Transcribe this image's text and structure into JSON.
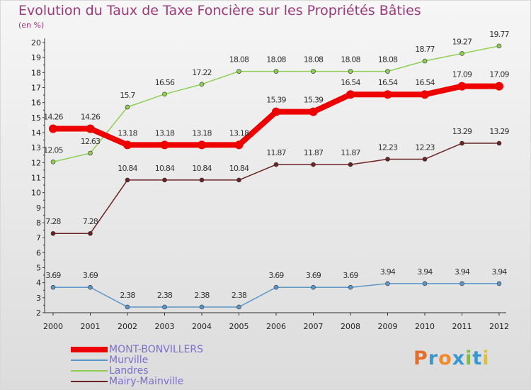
{
  "title": "Evolution du Taux de Taxe Foncière sur les Propriétés Bâties",
  "unit_label": "(en %)",
  "logo_text": "Proxiti",
  "colors": {
    "title": "#9b3a7a",
    "axis": "#333333",
    "legend_text": "#7b70c8",
    "logo": [
      "#e66e2b",
      "#3a98cf",
      "#f08a2a",
      "#3a98cf",
      "#7cbf3a",
      "#3a98cf",
      "#e0c03a"
    ]
  },
  "chart_data": {
    "type": "line",
    "title": "Evolution du Taux de Taxe Foncière sur les Propriétés Bâties",
    "ylabel": "(en %)",
    "xlabel": "",
    "ylim": [
      2,
      20
    ],
    "yticks": [
      2,
      3,
      4,
      5,
      6,
      7,
      8,
      9,
      10,
      11,
      12,
      13,
      14,
      15,
      16,
      17,
      18,
      19,
      20
    ],
    "grid": false,
    "legend_position": "bottom-left",
    "categories": [
      "2000",
      "2001",
      "2002",
      "2003",
      "2004",
      "2005",
      "2006",
      "2007",
      "2008",
      "2009",
      "2010",
      "2011",
      "2012"
    ],
    "series": [
      {
        "name": "Mairy-Mainville",
        "color": "#6b2424",
        "values": [
          7.28,
          7.28,
          10.84,
          10.84,
          10.84,
          10.84,
          11.87,
          11.87,
          11.87,
          12.23,
          12.23,
          13.29,
          13.29
        ],
        "labels": [
          "7.28",
          "7.28",
          "10.84",
          "10.84",
          "10.84",
          "10.84",
          "11.87",
          "11.87",
          "11.87",
          "12.23",
          "12.23",
          "13.29",
          "13.29"
        ]
      },
      {
        "name": "Landres",
        "color": "#8fcf55",
        "values": [
          12.05,
          12.63,
          15.7,
          16.56,
          17.22,
          18.08,
          18.08,
          18.08,
          18.08,
          18.08,
          18.77,
          19.27,
          19.77
        ],
        "labels": [
          "12.05",
          "12.63",
          "15.7",
          "16.56",
          "17.22",
          "18.08",
          "18.08",
          "18.08",
          "18.08",
          "18.08",
          "18.77",
          "19.27",
          "19.77"
        ]
      },
      {
        "name": "Murville",
        "color": "#5b96c8",
        "values": [
          3.69,
          3.69,
          2.38,
          2.38,
          2.38,
          2.38,
          3.69,
          3.69,
          3.69,
          3.94,
          3.94,
          3.94,
          3.94
        ],
        "labels": [
          "3.69",
          "3.69",
          "2.38",
          "2.38",
          "2.38",
          "2.38",
          "3.69",
          "3.69",
          "3.69",
          "3.94",
          "3.94",
          "3.94",
          "3.94"
        ]
      },
      {
        "name": "MONT-BONVILLERS",
        "color": "#ee0000",
        "values": [
          14.26,
          14.26,
          13.18,
          13.18,
          13.18,
          13.18,
          15.39,
          15.39,
          16.54,
          16.54,
          16.54,
          17.09,
          17.09
        ],
        "labels": [
          "14.26",
          "14.26",
          "13.18",
          "13.18",
          "13.18",
          "13.18",
          "15.39",
          "15.39",
          "16.54",
          "16.54",
          "16.54",
          "17.09",
          "17.09"
        ]
      }
    ],
    "legend": [
      "MONT-BONVILLERS",
      "Murville",
      "Landres",
      "Mairy-Mainville"
    ]
  }
}
